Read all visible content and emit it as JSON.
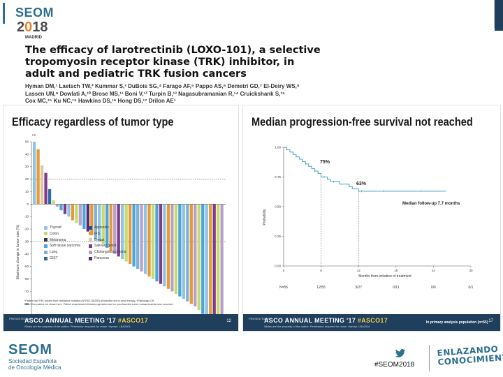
{
  "header": {
    "logo_word": "SEOM",
    "logo_year_prefix": "2",
    "logo_year_zero": "0",
    "logo_year_suffix": "18",
    "logo_city": "MADRID"
  },
  "paper": {
    "title_line1": "The efficacy of larotrectinib (LOXO-101), a selective",
    "title_line2": "tropomyosin receptor kinase (TRK) inhibitor, in",
    "title_line3": "adult and pediatric TRK fusion cancers",
    "authors_line1": "Hyman DM,¹ Laetsch TW,² Kummar S,³ DuBois SG,⁴ Farago AF,⁵ Pappo AS,⁶ Demetri GD,⁷ El-Deiry WS,⁸",
    "authors_line2": "Lassen UN,⁹ Dowlati A,¹⁰ Brose MS,¹¹ Boni V,¹² Turpin B,¹³ Nagasubramanian R,¹⁴ Cruickshank S,¹⁵",
    "authors_line3": "Cox MC,¹⁵ Ku NC,¹⁵ Hawkins DS,¹⁶ Hong DS,¹⁷ Drilon AE¹"
  },
  "left_slide": {
    "heading": "Efficacy regardless of tumor type",
    "y_axis_label": "Maximum change in tumor size (%)",
    "pr_label": "PR",
    "footnote_line1": "*Patient had TRK solvent front resistance mutation (NTRK3 G623R) at baseline due to prior therapy. †Pathologic CR.",
    "footnote_line2": "Note: One patient not shown here. Patient experienced clinical progression and no post-baseline tumor measurements were recorded.",
    "legend": [
      {
        "label": "Thyroid",
        "color": "#8ec3e6"
      },
      {
        "label": "Colon",
        "color": "#c8d96f"
      },
      {
        "label": "Melanoma",
        "color": "#3a3a3a"
      },
      {
        "label": "Soft tissue sarcoma",
        "color": "#4aa3d9"
      },
      {
        "label": "Lung",
        "color": "#7fb0d8"
      },
      {
        "label": "GIST",
        "color": "#2e6da4"
      },
      {
        "label": "Appendix",
        "color": "#1f4e8c"
      },
      {
        "label": "IFS",
        "color": "#e59a3a"
      },
      {
        "label": "Breast",
        "color": "#d9c9a0"
      },
      {
        "label": "Salivary gland",
        "color": "#7e3b8a"
      },
      {
        "label": "Cholangiocarcinoma",
        "color": "#b9a0c8"
      },
      {
        "label": "Pancreas",
        "color": "#5a2a6e"
      }
    ],
    "footer": {
      "presented": "PRESENTED AT:",
      "meeting": "ASCO ANNUAL MEETING '17",
      "tag": "#ASCO17",
      "sub": "Slides are the property of the author. Permission required for reuse.",
      "presenter": "Hyman, LBA2501",
      "page": "12"
    }
  },
  "right_slide": {
    "heading": "Median progression-free survival not reached",
    "y_axis_label": "Probability",
    "x_axis_label": "Months from initiation of treatment",
    "annotation_1": "75%",
    "annotation_2": "63%",
    "median_note": "Median follow-up 7.7 months",
    "n_risk_label": "N=55",
    "n_risk_values": [
      "12/55",
      "3/27",
      "0/11",
      "0/6",
      "0/1"
    ],
    "footer": {
      "presented": "PRESENTED AT:",
      "meeting": "ASCO ANNUAL MEETING '17",
      "tag": "#ASCO17",
      "sub": "Slides are the property of the author. Permission required for reuse.",
      "presenter": "Hyman, LBA2501",
      "note": "In primary analysis population (n=55)",
      "page": "17"
    }
  },
  "chart_data": [
    {
      "type": "bar",
      "title": "Efficacy regardless of tumor type",
      "ylabel": "Maximum change in tumor size (%)",
      "ylim": [
        -100,
        50
      ],
      "yticks": [
        50,
        40,
        30,
        20,
        10,
        0,
        -10,
        -20,
        -30,
        -40,
        -50,
        -60,
        -70,
        -80,
        -90,
        -100
      ],
      "reference_lines": [
        20,
        -30
      ],
      "values": [
        50,
        44,
        31,
        25,
        12,
        3,
        -2,
        -5,
        -8,
        -10,
        -13,
        -15,
        -17,
        -20,
        -22,
        -25,
        -28,
        -30,
        -32,
        -35,
        -38,
        -40,
        -42,
        -44,
        -46,
        -48,
        -50,
        -52,
        -54,
        -56,
        -58,
        -60,
        -62,
        -64,
        -66,
        -68,
        -70,
        -72,
        -74,
        -76,
        -78,
        -80,
        -82,
        -85,
        -88,
        -92,
        -95,
        -98,
        -100,
        -100
      ],
      "colors": [
        "#8ec3e6",
        "#e59a3a",
        "#d9c9a0",
        "#7e3b8a",
        "#2e6da4",
        "#c8d96f",
        "#b9a0c8",
        "#4aa3d9",
        "#7e3b8a",
        "#8ec3e6",
        "#e59a3a",
        "#c8d96f",
        "#b9a0c8",
        "#4aa3d9",
        "#5a2a6e",
        "#e59a3a",
        "#7fb0d8",
        "#8ec3e6",
        "#c8d96f",
        "#4aa3d9",
        "#e59a3a",
        "#b9a0c8",
        "#7e3b8a",
        "#8ec3e6",
        "#c8d96f",
        "#e59a3a",
        "#4aa3d9",
        "#7fb0d8",
        "#b9a0c8",
        "#8ec3e6",
        "#e59a3a",
        "#c8d96f",
        "#4aa3d9",
        "#7e3b8a",
        "#8ec3e6",
        "#e59a3a",
        "#b9a0c8",
        "#c8d96f",
        "#4aa3d9",
        "#8ec3e6",
        "#7fb0d8",
        "#e59a3a",
        "#b9a0c8",
        "#c8d96f",
        "#4aa3d9",
        "#8ec3e6",
        "#e59a3a",
        "#7e3b8a",
        "#c8d96f",
        "#b9a0c8"
      ]
    },
    {
      "type": "line",
      "title": "Median progression-free survival not reached",
      "xlabel": "Months from initiation of treatment",
      "ylabel": "Probability",
      "xlim": [
        0,
        30
      ],
      "ylim": [
        0,
        1
      ],
      "xticks": [
        0,
        6,
        12,
        18,
        24,
        30
      ],
      "yticks": [
        1.0,
        0.75,
        0.5,
        0.25,
        0.0
      ],
      "x": [
        0,
        0.5,
        1,
        1.5,
        2,
        2.5,
        3,
        3.5,
        4,
        4.5,
        5,
        5.5,
        6,
        6.5,
        7,
        7.5,
        8,
        9,
        10,
        10.5,
        11,
        12,
        12.5,
        13,
        14,
        16,
        18,
        20,
        22,
        24,
        26
      ],
      "y": [
        1.0,
        0.98,
        0.96,
        0.94,
        0.92,
        0.9,
        0.88,
        0.86,
        0.84,
        0.82,
        0.8,
        0.78,
        0.75,
        0.75,
        0.73,
        0.71,
        0.71,
        0.69,
        0.69,
        0.67,
        0.65,
        0.63,
        0.63,
        0.63,
        0.63,
        0.63,
        0.63,
        0.63,
        0.63,
        0.63,
        0.63
      ],
      "annotations": [
        {
          "x": 6,
          "y": 0.75,
          "text": "75%"
        },
        {
          "x": 12,
          "y": 0.63,
          "text": "63%"
        }
      ]
    }
  ],
  "bottom": {
    "seom_word": "SEOM",
    "seom_sub1": "Sociedad Española",
    "seom_sub2": "de Oncología Médica",
    "hashtag": "#SEOM2018",
    "enlazando_1": "ENLAZANDO",
    "enlazando_2": "CONOCIMIENTO"
  },
  "colors": {
    "brand": "#2c6f8f",
    "footer_bg": "#1f3f5c",
    "accent": "#e8862e"
  }
}
